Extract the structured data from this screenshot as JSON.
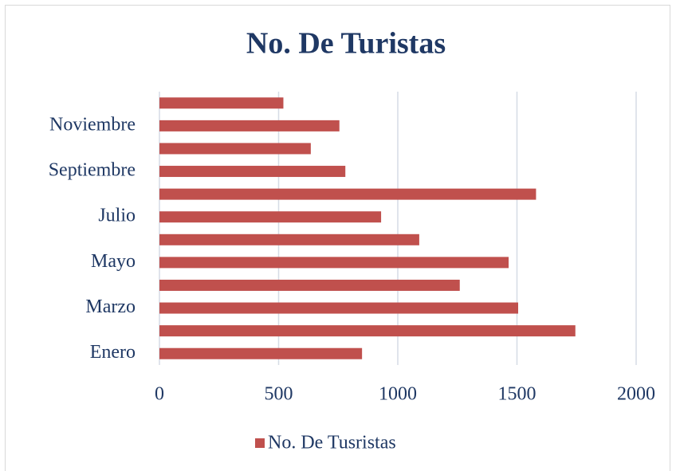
{
  "chart_data": {
    "type": "bar",
    "orientation": "horizontal",
    "title": "No. De Turistas",
    "categories": [
      "Enero",
      null,
      "Marzo",
      null,
      "Mayo",
      null,
      "Julio",
      null,
      "Septiembre",
      null,
      "Noviembre",
      null
    ],
    "series": [
      {
        "name": "No. De Tusristas",
        "color": "#c0504d",
        "values": [
          850,
          1745,
          1505,
          1260,
          1465,
          1090,
          930,
          1580,
          780,
          635,
          755,
          520
        ]
      }
    ],
    "xlim": [
      0,
      2000
    ],
    "xticks": [
      0,
      500,
      1000,
      1500,
      2000
    ],
    "grid": true,
    "legend": "bottom"
  }
}
